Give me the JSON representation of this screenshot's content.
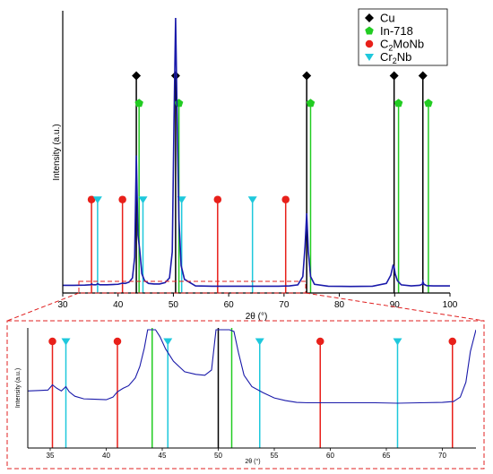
{
  "chart_data": [
    {
      "type": "line",
      "panel": "main",
      "xlabel": "2θ (°)",
      "ylabel": "Intensity (a.u.)",
      "xlim": [
        30,
        100
      ],
      "xticks": [
        30,
        40,
        50,
        60,
        70,
        80,
        90,
        100
      ],
      "ylim": [
        0,
        100
      ],
      "grid": false,
      "legend_position": "top-right",
      "legend": [
        {
          "label": "Cu",
          "color": "#000000",
          "marker": "diamond"
        },
        {
          "label": "In-718",
          "color": "#22cc22",
          "marker": "pentagon"
        },
        {
          "label": "C2MoNb",
          "label_main": "C",
          "label_sub": "2",
          "label_rest": "MoNb",
          "color": "#e8201a",
          "marker": "circle"
        },
        {
          "label": "Cr2Nb",
          "label_main": "Cr",
          "label_sub": "2",
          "label_rest": "Nb",
          "color": "#1ec8dc",
          "marker": "triangle-down"
        }
      ],
      "reference_lines": {
        "Cu": [
          43.3,
          50.4,
          74.1,
          89.9,
          95.1
        ],
        "In-718": [
          43.8,
          51.0,
          74.8,
          90.7,
          96.1
        ],
        "C2MoNb": [
          35.2,
          40.8,
          58.0,
          70.3
        ],
        "Cr2Nb": [
          36.3,
          44.5,
          51.5,
          64.3
        ]
      },
      "marker_levels": {
        "Cu": 78,
        "In-718": 68,
        "C2MoNb": 33,
        "Cr2Nb": 33
      },
      "series": [
        {
          "color": "#1a1aaa",
          "x": [
            30,
            32,
            34,
            35,
            35.2,
            35.5,
            36,
            36.3,
            36.7,
            38,
            40,
            40.8,
            41.3,
            42,
            42.6,
            43.0,
            43.3,
            43.6,
            43.9,
            44.3,
            44.8,
            45.5,
            46.5,
            47.5,
            48.5,
            49.3,
            49.8,
            50.1,
            50.4,
            50.7,
            51.0,
            51.4,
            52,
            54,
            57,
            60,
            63,
            66,
            69,
            71,
            72.5,
            73.4,
            73.8,
            74.1,
            74.4,
            74.8,
            75.5,
            78,
            82,
            86,
            88.5,
            89.3,
            89.7,
            89.9,
            90.1,
            90.5,
            91.2,
            93,
            94.5,
            95.0,
            95.1,
            95.3,
            95.8,
            97,
            100
          ],
          "y": [
            1.8,
            1.8,
            1.9,
            2.0,
            2.3,
            2.0,
            2.0,
            2.4,
            2.0,
            2.0,
            2.2,
            2.6,
            2.5,
            3.0,
            4.5,
            12,
            49,
            20,
            15,
            6,
            3.5,
            2.5,
            2.3,
            2.3,
            2.8,
            4.5,
            14,
            60,
            99,
            60,
            26,
            9,
            4,
            1.6,
            1.5,
            1.5,
            1.5,
            1.5,
            1.5,
            1.6,
            2.0,
            5,
            16,
            28,
            14,
            5,
            2.2,
            1.5,
            1.4,
            1.5,
            2.5,
            5.5,
            9,
            8.5,
            6,
            3.5,
            2.0,
            1.6,
            1.8,
            2.2,
            3.2,
            2.2,
            1.7,
            1.6,
            1.6
          ]
        }
      ]
    },
    {
      "type": "line",
      "panel": "zoom",
      "xlabel": "2θ (°)",
      "ylabel": "Intensity (a.u.)",
      "xlim": [
        33,
        73
      ],
      "xticks": [
        35,
        40,
        45,
        50,
        55,
        60,
        65,
        70
      ],
      "ylim": [
        0,
        100
      ],
      "grid": false,
      "reference_lines": {
        "Cu": [
          50.0
        ],
        "In-718": [
          44.1,
          51.2
        ],
        "C2MoNb": [
          35.2,
          41.0,
          59.1,
          70.9
        ],
        "Cr2Nb": [
          36.4,
          45.5,
          53.7,
          66.0
        ]
      },
      "marker_levels": {
        "Cu": 100,
        "In-718": 100,
        "C2MoNb": 100,
        "Cr2Nb": 100
      },
      "series": [
        {
          "color": "#1a1aaa",
          "x": [
            33,
            34,
            34.8,
            35.2,
            35.6,
            36.0,
            36.4,
            36.7,
            37.2,
            38,
            39,
            40,
            40.6,
            41.0,
            41.5,
            42,
            42.6,
            43.0,
            43.4,
            43.7,
            44.0,
            44.4,
            44.8,
            45.3,
            46,
            47,
            48,
            48.8,
            49.4,
            49.8,
            50.2,
            51.0,
            51.4,
            51.8,
            52.3,
            53,
            54,
            55,
            56,
            57,
            58,
            60,
            62,
            64,
            66,
            68,
            70,
            71,
            71.6,
            72.1,
            72.5,
            73
          ],
          "y": [
            30,
            30.5,
            31,
            37,
            33,
            30,
            35,
            29,
            24,
            21,
            20.5,
            20,
            23,
            29,
            33,
            36,
            45,
            58,
            79,
            100,
            100,
            100,
            92,
            78,
            64,
            52,
            49,
            48,
            54,
            100,
            100,
            100,
            98,
            74,
            48,
            35,
            28,
            22,
            19,
            17,
            16.5,
            16.5,
            16.5,
            16.5,
            16,
            16.5,
            17,
            18,
            23,
            40,
            75,
            100
          ]
        }
      ]
    }
  ]
}
